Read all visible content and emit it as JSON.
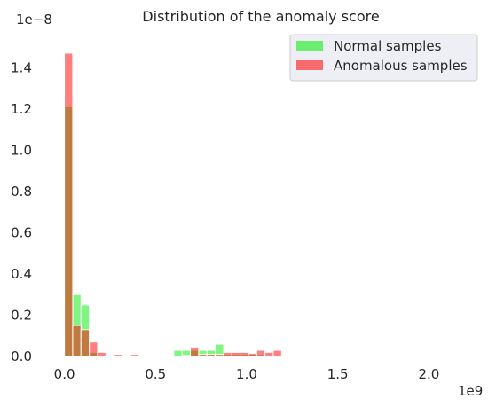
{
  "chart_data": {
    "type": "bar",
    "title": "Distribution of the anomaly score",
    "xlabel": "",
    "ylabel": "",
    "x_offset_label": "1e9",
    "y_offset_label": "1e−8",
    "x_scale": 1000000000.0,
    "y_scale": 1e-08,
    "xlim": [
      -0.11,
      2.3
    ],
    "ylim": [
      0,
      1.5
    ],
    "x_ticks": [
      0.0,
      0.5,
      1.0,
      1.5,
      2.0
    ],
    "x_tick_labels": [
      "0.0",
      "0.5",
      "1.0",
      "1.5",
      "2.0"
    ],
    "y_ticks": [
      0.0,
      0.2,
      0.4,
      0.6,
      0.8,
      1.0,
      1.2,
      1.4
    ],
    "y_tick_labels": [
      "0.0",
      "0.2",
      "0.4",
      "0.6",
      "0.8",
      "1.0",
      "1.2",
      "1.4"
    ],
    "grid": false,
    "legend_placement": "top-right",
    "bin_width": 0.0455,
    "series": [
      {
        "name": "Normal samples",
        "color": "#00ee00",
        "bin_starts": [
          0.0,
          0.0455,
          0.091,
          0.1365,
          0.6,
          0.6455,
          0.691,
          0.7365,
          0.782,
          0.8275,
          0.873,
          0.9185,
          0.964,
          1.0095,
          1.055
        ],
        "values": [
          1.21,
          0.3,
          0.25,
          0.02,
          0.03,
          0.03,
          0.03,
          0.03,
          0.03,
          0.06,
          0.01,
          0.01,
          0.01,
          0.01,
          0.01
        ]
      },
      {
        "name": "Anomalous samples",
        "color": "#ff0000",
        "bin_starts": [
          0.0,
          0.0455,
          0.091,
          0.1365,
          0.182,
          0.273,
          0.364,
          0.4095,
          0.6455,
          0.691,
          0.7365,
          0.782,
          0.8275,
          0.873,
          0.9185,
          0.964,
          1.0095,
          1.055,
          1.1005,
          1.146,
          1.1915,
          1.237,
          1.2825,
          1.328,
          1.3735,
          1.419
        ],
        "values": [
          1.47,
          0.15,
          0.13,
          0.07,
          0.02,
          0.01,
          0.01,
          0.005,
          0.005,
          0.045,
          0.01,
          0.01,
          0.01,
          0.02,
          0.02,
          0.02,
          0.015,
          0.03,
          0.02,
          0.03,
          0.005,
          0.005,
          0.005,
          0.003,
          0.003,
          0.003
        ]
      }
    ]
  }
}
